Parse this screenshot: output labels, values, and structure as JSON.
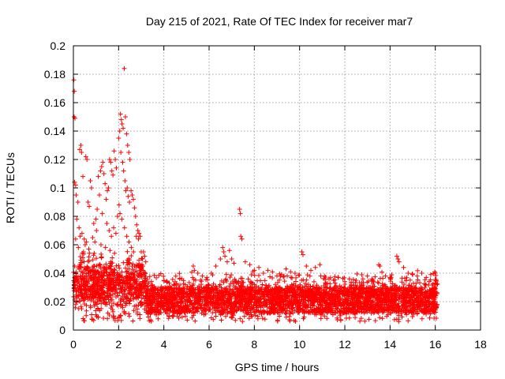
{
  "chart_data": {
    "type": "scatter",
    "title": "Day 215 of 2021, Rate Of TEC Index for receiver mar7",
    "xlabel": "GPS time / hours",
    "ylabel": "ROTI / TECUs",
    "xlim": [
      0,
      18
    ],
    "ylim": [
      0,
      0.2
    ],
    "xticks": [
      0,
      2,
      4,
      6,
      8,
      10,
      12,
      14,
      16,
      18
    ],
    "yticks": [
      0,
      0.02,
      0.04,
      0.06,
      0.08,
      0.1,
      0.12,
      0.14,
      0.16,
      0.18,
      0.2
    ],
    "xtick_labels": [
      "0",
      "2",
      "4",
      "6",
      "8",
      "10",
      "12",
      "14",
      "16",
      "18"
    ],
    "ytick_labels": [
      "0",
      "0.02",
      "0.04",
      "0.06",
      "0.08",
      "0.1",
      "0.12",
      "0.14",
      "0.16",
      "0.18",
      "0.2"
    ],
    "grid": true,
    "marker": "+",
    "color": "#ff0000",
    "series": [
      {
        "name": "ROTI",
        "points": [
          [
            0.02,
            0.176
          ],
          [
            0.04,
            0.168
          ],
          [
            0.03,
            0.15
          ],
          [
            0.07,
            0.149
          ],
          [
            0.05,
            0.104
          ],
          [
            0.1,
            0.102
          ],
          [
            0.12,
            0.095
          ],
          [
            0.2,
            0.09
          ],
          [
            0.28,
            0.127
          ],
          [
            0.33,
            0.13
          ],
          [
            0.36,
            0.125
          ],
          [
            0.55,
            0.122
          ],
          [
            0.6,
            0.12
          ],
          [
            0.42,
            0.108
          ],
          [
            0.75,
            0.105
          ],
          [
            0.8,
            0.1
          ],
          [
            0.65,
            0.09
          ],
          [
            0.7,
            0.087
          ],
          [
            0.9,
            0.075
          ],
          [
            0.15,
            0.078
          ],
          [
            0.25,
            0.072
          ],
          [
            0.38,
            0.068
          ],
          [
            0.48,
            0.064
          ],
          [
            0.52,
            0.06
          ],
          [
            0.85,
            0.065
          ],
          [
            0.95,
            0.062
          ],
          [
            1.1,
            0.108
          ],
          [
            1.2,
            0.112
          ],
          [
            1.25,
            0.115
          ],
          [
            1.3,
            0.118
          ],
          [
            1.35,
            0.11
          ],
          [
            1.4,
            0.103
          ],
          [
            1.15,
            0.095
          ],
          [
            1.45,
            0.092
          ],
          [
            1.5,
            0.098
          ],
          [
            1.55,
            0.1
          ],
          [
            1.6,
            0.12
          ],
          [
            1.65,
            0.118
          ],
          [
            1.7,
            0.112
          ],
          [
            1.75,
            0.109
          ],
          [
            1.8,
            0.126
          ],
          [
            1.85,
            0.12
          ],
          [
            1.9,
            0.114
          ],
          [
            1.05,
            0.085
          ],
          [
            1.0,
            0.078
          ],
          [
            1.28,
            0.082
          ],
          [
            1.48,
            0.075
          ],
          [
            1.58,
            0.07
          ],
          [
            1.68,
            0.066
          ],
          [
            1.78,
            0.072
          ],
          [
            1.88,
            0.068
          ],
          [
            1.95,
            0.08
          ],
          [
            2.0,
            0.135
          ],
          [
            2.05,
            0.14
          ],
          [
            2.08,
            0.152
          ],
          [
            2.12,
            0.148
          ],
          [
            2.15,
            0.145
          ],
          [
            2.2,
            0.142
          ],
          [
            2.25,
            0.184
          ],
          [
            2.3,
            0.15
          ],
          [
            2.35,
            0.138
          ],
          [
            2.4,
            0.13
          ],
          [
            2.45,
            0.125
          ],
          [
            2.5,
            0.12
          ],
          [
            2.1,
            0.125
          ],
          [
            2.18,
            0.118
          ],
          [
            2.22,
            0.112
          ],
          [
            2.28,
            0.105
          ],
          [
            2.32,
            0.098
          ],
          [
            2.38,
            0.1
          ],
          [
            2.42,
            0.094
          ],
          [
            2.48,
            0.09
          ],
          [
            2.55,
            0.098
          ],
          [
            2.6,
            0.095
          ],
          [
            2.65,
            0.092
          ],
          [
            2.7,
            0.086
          ],
          [
            2.75,
            0.08
          ],
          [
            2.8,
            0.074
          ],
          [
            2.85,
            0.07
          ],
          [
            2.9,
            0.068
          ],
          [
            2.02,
            0.088
          ],
          [
            2.06,
            0.082
          ],
          [
            2.14,
            0.078
          ],
          [
            2.26,
            0.072
          ],
          [
            2.36,
            0.066
          ],
          [
            2.46,
            0.062
          ],
          [
            2.56,
            0.058
          ],
          [
            2.66,
            0.055
          ],
          [
            2.78,
            0.066
          ],
          [
            2.88,
            0.064
          ],
          [
            2.95,
            0.066
          ],
          [
            3.0,
            0.055
          ],
          [
            3.05,
            0.05
          ],
          [
            3.1,
            0.055
          ],
          [
            3.15,
            0.052
          ],
          [
            3.2,
            0.048
          ],
          [
            2.92,
            0.046
          ],
          [
            2.98,
            0.044
          ],
          [
            3.08,
            0.042
          ],
          [
            3.18,
            0.04
          ],
          [
            1.02,
            0.07
          ],
          [
            0.58,
            0.062
          ],
          [
            0.3,
            0.066
          ],
          [
            0.1,
            0.064
          ],
          [
            0.22,
            0.058
          ],
          [
            0.45,
            0.055
          ],
          [
            0.68,
            0.057
          ],
          [
            0.92,
            0.054
          ],
          [
            1.22,
            0.06
          ],
          [
            1.42,
            0.058
          ],
          [
            1.62,
            0.056
          ],
          [
            1.82,
            0.054
          ],
          [
            4.5,
            0.034
          ],
          [
            4.7,
            0.036
          ],
          [
            5.3,
            0.045
          ],
          [
            5.35,
            0.042
          ],
          [
            5.5,
            0.04
          ],
          [
            5.7,
            0.038
          ],
          [
            5.9,
            0.037
          ],
          [
            6.1,
            0.04
          ],
          [
            6.3,
            0.045
          ],
          [
            6.5,
            0.05
          ],
          [
            6.6,
            0.058
          ],
          [
            6.65,
            0.055
          ],
          [
            6.7,
            0.052
          ],
          [
            6.8,
            0.048
          ],
          [
            6.9,
            0.056
          ],
          [
            7.0,
            0.05
          ],
          [
            7.1,
            0.047
          ],
          [
            7.35,
            0.085
          ],
          [
            7.38,
            0.082
          ],
          [
            7.4,
            0.066
          ],
          [
            7.45,
            0.064
          ],
          [
            7.6,
            0.048
          ],
          [
            7.8,
            0.046
          ],
          [
            8.0,
            0.042
          ],
          [
            8.2,
            0.044
          ],
          [
            8.4,
            0.04
          ],
          [
            8.6,
            0.042
          ],
          [
            8.8,
            0.041
          ],
          [
            9.0,
            0.038
          ],
          [
            9.2,
            0.039
          ],
          [
            9.4,
            0.043
          ],
          [
            9.6,
            0.041
          ],
          [
            9.8,
            0.04
          ],
          [
            10.1,
            0.055
          ],
          [
            10.15,
            0.053
          ],
          [
            10.3,
            0.045
          ],
          [
            10.5,
            0.042
          ],
          [
            10.7,
            0.044
          ],
          [
            10.9,
            0.046
          ],
          [
            11.1,
            0.038
          ],
          [
            11.3,
            0.036
          ],
          [
            11.5,
            0.035
          ],
          [
            11.7,
            0.037
          ],
          [
            12.0,
            0.034
          ],
          [
            12.2,
            0.036
          ],
          [
            12.5,
            0.035
          ],
          [
            12.8,
            0.036
          ],
          [
            13.0,
            0.038
          ],
          [
            13.2,
            0.036
          ],
          [
            13.5,
            0.046
          ],
          [
            13.55,
            0.045
          ],
          [
            13.8,
            0.038
          ],
          [
            14.0,
            0.037
          ],
          [
            14.3,
            0.052
          ],
          [
            14.35,
            0.05
          ],
          [
            14.4,
            0.048
          ],
          [
            14.6,
            0.044
          ],
          [
            14.8,
            0.04
          ],
          [
            15.0,
            0.039
          ],
          [
            15.2,
            0.038
          ],
          [
            15.4,
            0.04
          ],
          [
            15.6,
            0.037
          ],
          [
            15.8,
            0.039
          ],
          [
            16.0,
            0.04
          ]
        ]
      }
    ]
  }
}
